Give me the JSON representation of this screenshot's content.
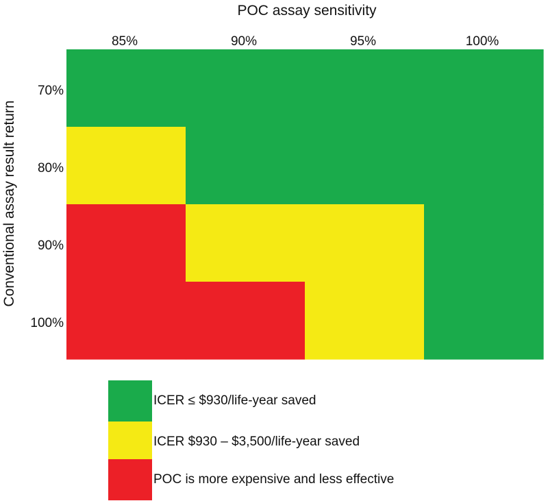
{
  "chart_data": {
    "type": "heatmap",
    "title": "POC assay sensitivity",
    "xlabel": "POC assay sensitivity",
    "ylabel": "Conventional assay result return",
    "x_categories": [
      "85%",
      "90%",
      "95%",
      "100%"
    ],
    "y_categories": [
      "70%",
      "80%",
      "90%",
      "100%"
    ],
    "grid_classes": [
      [
        "green",
        "green",
        "green",
        "green"
      ],
      [
        "yellow",
        "green",
        "green",
        "green"
      ],
      [
        "red",
        "yellow",
        "yellow",
        "green"
      ],
      [
        "red",
        "red",
        "yellow",
        "green"
      ]
    ],
    "legend": [
      {
        "key": "green",
        "label": "ICER ≤ $930/life-year saved",
        "color": "#1aab4b"
      },
      {
        "key": "yellow",
        "label": "ICER $930 – $3,500/life-year saved",
        "color": "#f5ea14"
      },
      {
        "key": "red",
        "label": "POC is more expensive and less effective",
        "color": "#ec2027"
      }
    ]
  }
}
